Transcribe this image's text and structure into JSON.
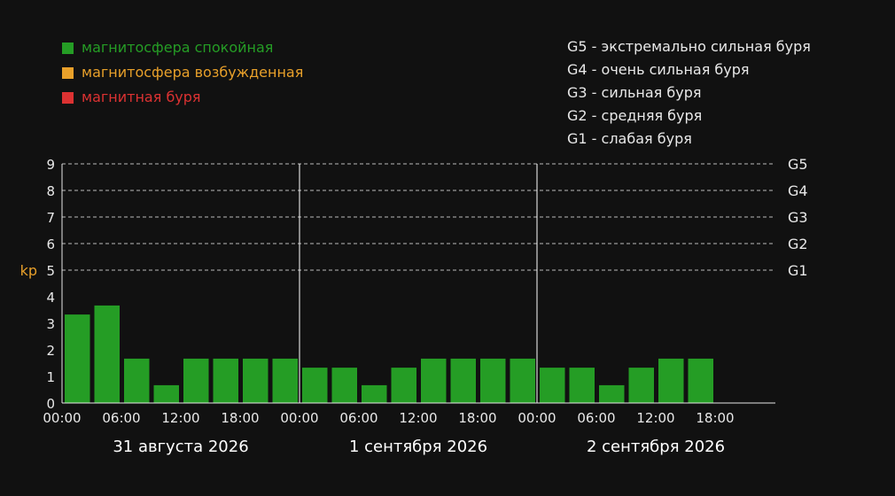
{
  "legend": [
    {
      "label": "магнитосфера спокойная",
      "color": "#259d25"
    },
    {
      "label": "магнитосфера возбужденная",
      "color": "#e8a02a"
    },
    {
      "label": "магнитная буря",
      "color": "#dc3232"
    }
  ],
  "storm_scale": [
    "G5 - экстремально сильная буря",
    "G4 - очень сильная буря",
    "G3 - сильная буря",
    "G2 - средняя буря",
    "G1 - слабая буря"
  ],
  "colors": {
    "background": "#111111",
    "axis": "#e8e8e8",
    "ylabel": "#e8a02a"
  },
  "chart_data": {
    "type": "bar",
    "ylabel": "kp",
    "ylim": [
      0,
      9
    ],
    "yticks": [
      "0",
      "1",
      "2",
      "3",
      "4",
      "5",
      "6",
      "7",
      "8",
      "9"
    ],
    "g_levels": [
      {
        "label": "G1",
        "value": 5
      },
      {
        "label": "G2",
        "value": 6
      },
      {
        "label": "G3",
        "value": 7
      },
      {
        "label": "G4",
        "value": 8
      },
      {
        "label": "G5",
        "value": 9
      }
    ],
    "grid": "dashed at G-levels",
    "xticks": [
      "00:00",
      "06:00",
      "12:00",
      "18:00",
      "00:00",
      "06:00",
      "12:00",
      "18:00",
      "00:00",
      "06:00",
      "12:00",
      "18:00"
    ],
    "days": [
      "31 августа 2026",
      "1 сентября 2026",
      "2 сентября 2026"
    ],
    "interval_hours": 3,
    "values": [
      3.33,
      3.67,
      1.67,
      0.67,
      1.67,
      1.67,
      1.67,
      1.67,
      1.33,
      1.33,
      0.67,
      1.33,
      1.67,
      1.67,
      1.67,
      1.67,
      1.33,
      1.33,
      0.67,
      1.33,
      1.67,
      1.67
    ]
  }
}
